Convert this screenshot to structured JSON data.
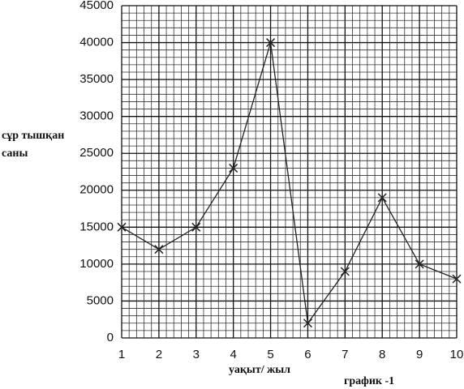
{
  "chart_data": {
    "type": "line",
    "ylabel": "сұр тышқан саны",
    "xlabel": "уақыт/ жыл",
    "caption": "график -1",
    "x": [
      1,
      2,
      3,
      4,
      5,
      6,
      7,
      8,
      9,
      10
    ],
    "series": [
      {
        "color": "#222222",
        "values": [
          15000,
          12000,
          15000,
          23000,
          40000,
          2000,
          9000,
          19000,
          10000,
          8000
        ]
      }
    ],
    "xlim": [
      1,
      10
    ],
    "xticks": [
      1,
      2,
      3,
      4,
      5,
      6,
      7,
      8,
      9,
      10
    ],
    "ylim": [
      0,
      45000
    ],
    "yticks": [
      0,
      5000,
      10000,
      15000,
      20000,
      25000,
      30000,
      35000,
      40000,
      45000
    ],
    "grid": true,
    "minor_grid": 5
  }
}
